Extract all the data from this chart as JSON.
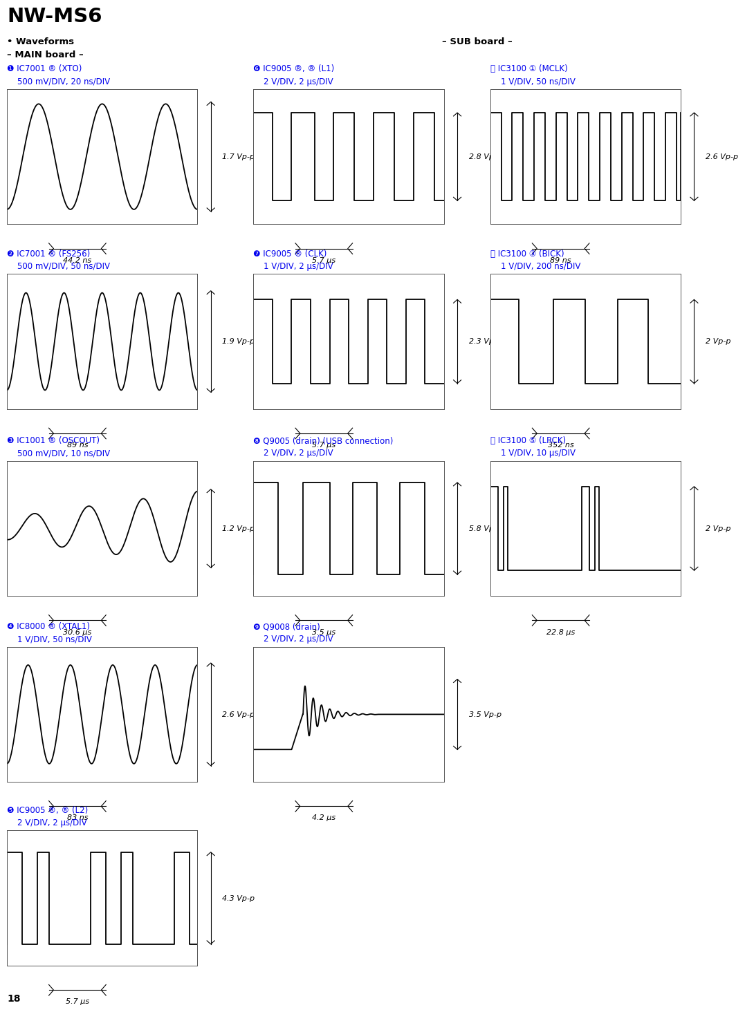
{
  "title": "NW-MS6",
  "header1": "• Waveforms",
  "header2": "– MAIN board –",
  "sub_header": "– SUB board –",
  "page_number": "18",
  "blue": "#0000EE",
  "black": "#000000",
  "bg": "#FFFFFF",
  "waveforms": [
    {
      "num": "1",
      "num_label": "❶",
      "label": "IC7001 ® (XTO)",
      "settings": "500 mV/DIV, 20 ns/DIV",
      "type": "sine",
      "vpp": "1.7 Vp-p",
      "time_label": "44.2 ns",
      "freq": 3.0,
      "amplitude": 0.78,
      "col": 0,
      "row": 0
    },
    {
      "num": "2",
      "num_label": "❷",
      "label": "IC7001 ® (FS256)",
      "settings": "500 mV/DIV, 50 ns/DIV",
      "type": "sine",
      "vpp": "1.9 Vp-p",
      "time_label": "89 ns",
      "freq": 5.0,
      "amplitude": 0.72,
      "col": 0,
      "row": 1
    },
    {
      "num": "3",
      "num_label": "❸",
      "label": "IC1001 ® (OSCOUT)",
      "settings": "500 mV/DIV, 10 ns/DIV",
      "type": "sine_grow",
      "vpp": "1.2 Vp-p",
      "time_label": "30.6 μs",
      "freq": 3.5,
      "amplitude": 0.55,
      "col": 0,
      "row": 2
    },
    {
      "num": "4",
      "num_label": "❹",
      "label": "IC8000 ® (XTAL1)",
      "settings": "1 V/DIV, 50 ns/DIV",
      "type": "sine",
      "vpp": "2.6 Vp-p",
      "time_label": "83 ns",
      "freq": 4.5,
      "amplitude": 0.73,
      "col": 0,
      "row": 3
    },
    {
      "num": "5",
      "num_label": "❺",
      "label": "IC9005 ®, ® (L2)",
      "settings": "2 V/DIV, 2 μs/DIV",
      "type": "square_l2",
      "vpp": "4.3 Vp-p",
      "time_label": "5.7 μs",
      "col": 0,
      "row": 4
    },
    {
      "num": "6",
      "num_label": "❻",
      "label": "IC9005 ®, ® (L1)",
      "settings": "2 V/DIV, 2 μs/DIV",
      "type": "square_l1",
      "vpp": "2.8 Vp-p",
      "time_label": "5.7 μs",
      "col": 1,
      "row": 0
    },
    {
      "num": "7",
      "num_label": "❼",
      "label": "IC9005 ® (CLK)",
      "settings": "1 V/DIV, 2 μs/DIV",
      "type": "square_clk",
      "vpp": "2.3 Vp-p",
      "time_label": "5.7 μs",
      "col": 1,
      "row": 1
    },
    {
      "num": "8",
      "num_label": "❽",
      "label": "Q9005 (drain) (USB connection)",
      "settings": "2 V/DIV, 2 μs/DIV",
      "type": "square_usb",
      "vpp": "5.8 Vp-p",
      "time_label": "3.5 μs",
      "col": 1,
      "row": 2
    },
    {
      "num": "9",
      "num_label": "❾",
      "label": "Q9008 (drain)",
      "settings": "2 V/DIV, 2 μs/DIV",
      "type": "pulse_ringing",
      "vpp": "3.5 Vp-p",
      "time_label": "4.2 μs",
      "col": 1,
      "row": 3
    },
    {
      "num": "11",
      "num_label": "⑪",
      "label": "IC3100 ① (MCLK)",
      "settings": "1 V/DIV, 50 ns/DIV",
      "type": "square_mclk",
      "vpp": "2.6 Vp-p",
      "time_label": "89 ns",
      "col": 2,
      "row": 0
    },
    {
      "num": "12",
      "num_label": "⑫",
      "label": "IC3100 ③ (BICK)",
      "settings": "1 V/DIV, 200 ns/DIV",
      "type": "square_bick",
      "vpp": "2 Vp-p",
      "time_label": "352 ns",
      "col": 2,
      "row": 1
    },
    {
      "num": "13",
      "num_label": "⑬",
      "label": "IC3100 ⑤ (LRCK)",
      "settings": "1 V/DIV, 10 μs/DIV",
      "type": "square_lrck",
      "vpp": "2 Vp-p",
      "time_label": "22.8 μs",
      "col": 2,
      "row": 2
    }
  ]
}
